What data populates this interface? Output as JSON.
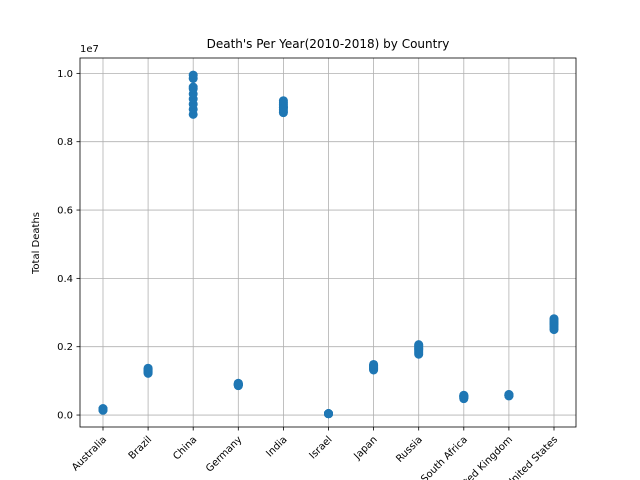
{
  "chart_data": {
    "type": "scatter",
    "title": "Death's Per Year(2010-2018) by Country",
    "xlabel": "",
    "ylabel": "Total Deaths",
    "y_offset_text": "1e7",
    "ylim": [
      -0.035,
      1.045
    ],
    "y_ticks": [
      "0.0",
      "0.2",
      "0.4",
      "0.6",
      "0.8",
      "1.0"
    ],
    "y_tick_values": [
      0.0,
      0.2,
      0.4,
      0.6,
      0.8,
      1.0
    ],
    "grid": true,
    "categories": [
      "Australia",
      "Brazil",
      "China",
      "Germany",
      "India",
      "Israel",
      "Japan",
      "Russia",
      "South Africa",
      "United Kingdom",
      "United States"
    ],
    "series": [
      {
        "color": "#1f77b4",
        "points": [
          {
            "x": "Australia",
            "y": [
              0.014,
              0.015,
              0.016,
              0.016,
              0.017,
              0.017,
              0.018,
              0.018,
              0.019
            ]
          },
          {
            "x": "Brazil",
            "y": [
              0.122,
              0.124,
              0.126,
              0.128,
              0.129,
              0.131,
              0.133,
              0.135,
              0.137
            ]
          },
          {
            "x": "China",
            "y": [
              0.88,
              0.895,
              0.91,
              0.925,
              0.94,
              0.955,
              0.96,
              0.985,
              0.995
            ]
          },
          {
            "x": "Germany",
            "y": [
              0.086,
              0.087,
              0.088,
              0.089,
              0.089,
              0.09,
              0.091,
              0.092,
              0.093
            ]
          },
          {
            "x": "India",
            "y": [
              0.885,
              0.89,
              0.895,
              0.9,
              0.9,
              0.905,
              0.91,
              0.915,
              0.92
            ]
          },
          {
            "x": "Israel",
            "y": [
              0.004,
              0.004,
              0.004,
              0.004,
              0.004,
              0.004,
              0.004,
              0.004,
              0.004
            ]
          },
          {
            "x": "Japan",
            "y": [
              0.132,
              0.134,
              0.136,
              0.138,
              0.14,
              0.142,
              0.144,
              0.146,
              0.148
            ]
          },
          {
            "x": "Russia",
            "y": [
              0.178,
              0.182,
              0.186,
              0.19,
              0.193,
              0.196,
              0.2,
              0.203,
              0.206
            ]
          },
          {
            "x": "South Africa",
            "y": [
              0.048,
              0.05,
              0.052,
              0.053,
              0.054,
              0.055,
              0.056,
              0.057,
              0.058
            ]
          },
          {
            "x": "United Kingdom",
            "y": [
              0.056,
              0.057,
              0.057,
              0.058,
              0.058,
              0.059,
              0.059,
              0.06,
              0.06
            ]
          },
          {
            "x": "United States",
            "y": [
              0.25,
              0.255,
              0.26,
              0.265,
              0.268,
              0.271,
              0.274,
              0.278,
              0.282
            ]
          }
        ]
      }
    ]
  }
}
